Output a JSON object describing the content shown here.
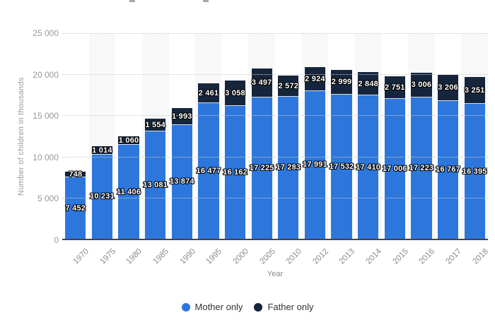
{
  "chart_data": {
    "type": "bar",
    "stacked": true,
    "categories": [
      "1970",
      "1975",
      "1980",
      "1985",
      "1990",
      "1995",
      "2000",
      "2005",
      "2010",
      "2012",
      "2013",
      "2014",
      "2015",
      "2016",
      "2017",
      "2018"
    ],
    "series": [
      {
        "name": "Mother only",
        "color": "#2d77dc",
        "values": [
          7452,
          10231,
          11406,
          13081,
          13874,
          16477,
          16162,
          17225,
          17283,
          17991,
          17532,
          17410,
          17006,
          17223,
          16767,
          16395
        ],
        "labels": [
          "7 452",
          "10 231",
          "11 406",
          "13 081",
          "13 874",
          "16 477",
          "16 162",
          "17 225",
          "17 283",
          "17 991",
          "17 532",
          "17 410",
          "17 006",
          "17 223",
          "16 767",
          "16 395"
        ]
      },
      {
        "name": "Father only",
        "color": "#15253c",
        "values": [
          748,
          1014,
          1060,
          1554,
          1993,
          2461,
          3058,
          3497,
          2572,
          2924,
          2999,
          2848,
          2751,
          3006,
          3206,
          3251
        ],
        "labels": [
          "748",
          "1 014",
          "1 060",
          "1 554",
          "1 993",
          "2 461",
          "3 058",
          "3 497",
          "2 572",
          "2 924",
          "2 999",
          "2 848",
          "2 751",
          "3 006",
          "3 206",
          "3 251"
        ]
      }
    ],
    "xlabel": "Year",
    "ylabel": "Number of children in thousands",
    "ylim": [
      0,
      25000
    ],
    "yticks": [
      {
        "value": 25000,
        "label": "25 000"
      },
      {
        "value": 20000,
        "label": "20 000"
      },
      {
        "value": 15000,
        "label": "15 000"
      },
      {
        "value": 10000,
        "label": "10 000"
      },
      {
        "value": 5000,
        "label": "5 000"
      },
      {
        "value": 0,
        "label": "0"
      }
    ],
    "grid": "horizontal-dotted",
    "band_color": "#f8f8f8",
    "legend_position": "bottom"
  },
  "legend": {
    "items": [
      {
        "label": "Mother only",
        "color": "#2d77dc"
      },
      {
        "label": "Father only",
        "color": "#15253c"
      }
    ]
  }
}
